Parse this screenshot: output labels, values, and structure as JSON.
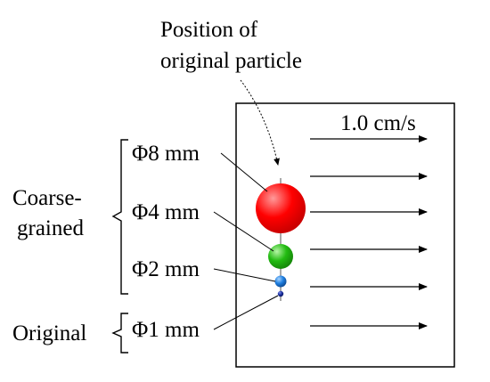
{
  "annotation": {
    "line1": "Position of",
    "line2": "original particle"
  },
  "velocity_label": "1.0 cm/s",
  "groups": {
    "coarse_line1": "Coarse-",
    "coarse_line2": "grained",
    "original": "Original"
  },
  "particles": [
    {
      "label": "Φ8 mm",
      "color": "#ff0000",
      "highlight": "#ff9a9a"
    },
    {
      "label": "Φ4 mm",
      "color": "#22bb11",
      "highlight": "#b6f5a6"
    },
    {
      "label": "Φ2 mm",
      "color": "#1f7fe0",
      "highlight": "#a8d4ff"
    },
    {
      "label": "Φ1 mm",
      "color": "#1a2fa0",
      "highlight": "#7f8fe8"
    }
  ],
  "colors": {
    "frame": "#000000",
    "arrow": "#000000"
  }
}
